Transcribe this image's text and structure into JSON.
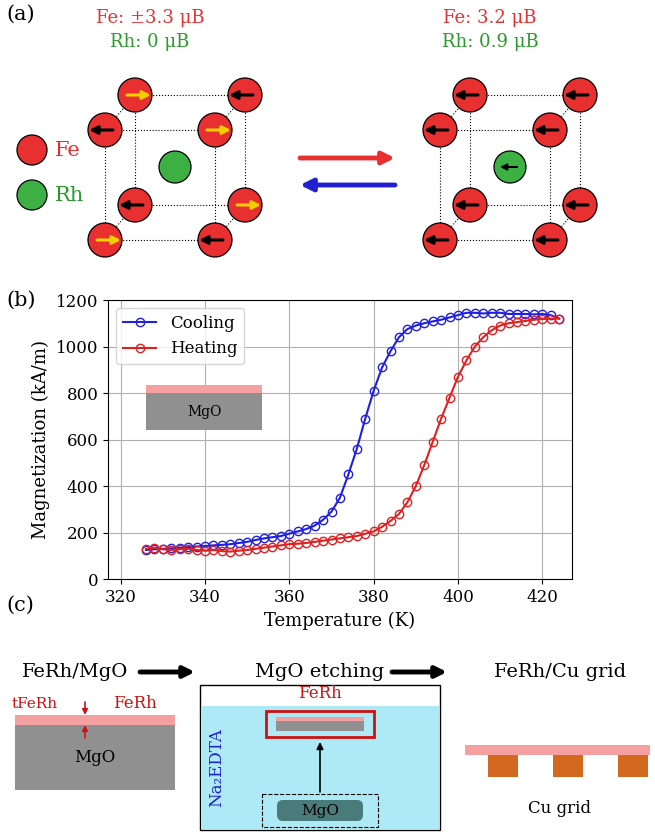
{
  "panel_labels": [
    "(a)",
    "(b)",
    "(c)"
  ],
  "panel_a": {
    "left": {
      "fe_moment": "Fe: ±3.3 μB",
      "rh_moment": "Rh: 0 μB"
    },
    "right": {
      "fe_moment": "Fe: 3.2 μB",
      "rh_moment": "Rh: 0.9 μB"
    },
    "legend": [
      "Fe",
      "Rh"
    ]
  },
  "chart_data": {
    "type": "line",
    "x_label": "Temperature (K)",
    "y_label": "Magnetization (kA/m)",
    "annotations": [
      "MgO"
    ],
    "x": [
      326,
      328,
      330,
      332,
      334,
      336,
      338,
      340,
      342,
      344,
      346,
      348,
      350,
      352,
      354,
      356,
      358,
      360,
      362,
      364,
      366,
      368,
      370,
      372,
      374,
      376,
      378,
      380,
      382,
      384,
      386,
      388,
      390,
      392,
      394,
      396,
      398,
      400,
      402,
      404,
      406,
      408,
      410,
      412,
      414,
      416,
      418,
      420,
      422,
      424
    ],
    "series": [
      {
        "name": "Cooling",
        "color": "#1f1fe0",
        "marker": "o",
        "line_style": "solid",
        "values": [
          125,
          128,
          130,
          132,
          135,
          137,
          140,
          142,
          145,
          147,
          150,
          155,
          160,
          168,
          175,
          180,
          185,
          195,
          205,
          215,
          230,
          255,
          290,
          350,
          450,
          560,
          690,
          810,
          910,
          980,
          1040,
          1075,
          1090,
          1100,
          1108,
          1115,
          1125,
          1135,
          1145,
          1145,
          1142,
          1145,
          1145,
          1140,
          1140,
          1140,
          1138,
          1140,
          1135,
          1120
        ]
      },
      {
        "name": "Heating",
        "color": "#e02020",
        "marker": "o",
        "line_style": "solid",
        "values": [
          130,
          135,
          128,
          125,
          128,
          130,
          125,
          122,
          125,
          120,
          118,
          122,
          125,
          130,
          135,
          140,
          145,
          150,
          152,
          155,
          160,
          165,
          170,
          175,
          180,
          185,
          195,
          205,
          225,
          250,
          280,
          330,
          400,
          490,
          590,
          690,
          780,
          870,
          940,
          1000,
          1040,
          1070,
          1090,
          1100,
          1105,
          1110,
          1115,
          1118,
          1120,
          1120
        ]
      }
    ],
    "xlim": [
      317,
      427
    ],
    "xticks": [
      320,
      340,
      360,
      380,
      400,
      420
    ],
    "ylim": [
      0,
      1200
    ],
    "yticks": [
      0,
      200,
      400,
      600,
      800,
      1000,
      1200
    ],
    "grid": true,
    "legend": "upper left"
  },
  "panel_c": {
    "steps": [
      "FeRh/MgO",
      "MgO etching",
      "FeRh/Cu grid"
    ],
    "thickness_label": "tFeRh",
    "film": "FeRh",
    "substrate": "MgO",
    "solution": "Na₂EDTA",
    "grid": "Cu grid"
  }
}
